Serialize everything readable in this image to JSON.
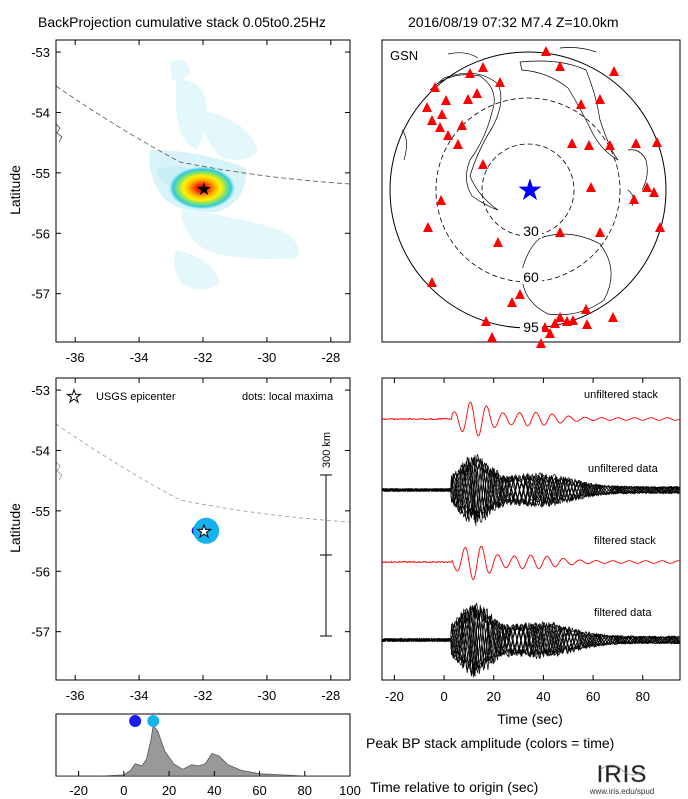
{
  "header": {
    "title": "BackProjection cumulative stack 0.05to0.25Hz",
    "event": "2016/08/19 07:32   M7.4  Z=10.0km"
  },
  "map_top": {
    "ylabel": "Latitude",
    "xticks": [
      "-36",
      "-34",
      "-32",
      "-30",
      "-28"
    ],
    "yticks": [
      "-53",
      "-54",
      "-55",
      "-56",
      "-57"
    ]
  },
  "globe": {
    "network": "GSN",
    "ring_labels": [
      "30",
      "60",
      "95"
    ]
  },
  "map_bottom": {
    "ylabel": "Latitude",
    "legend_epicenter": "USGS epicenter",
    "legend_dots": "dots: local maxima",
    "scale_label": "300 km",
    "xticks": [
      "-36",
      "-34",
      "-32",
      "-30",
      "-28"
    ],
    "yticks": [
      "-53",
      "-54",
      "-55",
      "-56",
      "-57"
    ]
  },
  "waveforms": {
    "labels": [
      "unfiltered stack",
      "unfiltered data",
      "filtered stack",
      "filtered data"
    ],
    "xlabel": "Time (sec)",
    "xticks": [
      "-20",
      "0",
      "20",
      "40",
      "60",
      "80"
    ]
  },
  "peak": {
    "title": "Peak BP stack amplitude (colors = time)",
    "xlabel": "Time relative to origin (sec)",
    "xticks": [
      "-20",
      "0",
      "20",
      "40",
      "60",
      "80",
      "100"
    ]
  },
  "logo": {
    "text": "IRIS",
    "url": "www.iris.edu/spud"
  },
  "colors": {
    "stack_red": "#ff0000",
    "station_red": "#ff0000",
    "epicenter_blue": "#0000ff",
    "maxima_dark": "#1b1bf0",
    "maxima_light": "#16b2ee",
    "envelope_gray": "#999999"
  },
  "chart_data": [
    {
      "type": "heatmap",
      "name": "cumulative stack map",
      "x_range": [
        -36.6,
        -27.4
      ],
      "y_range": [
        -57.8,
        -52.8
      ],
      "peak": {
        "lon": -31.9,
        "lat": -55.3
      },
      "epicenter": {
        "lon": -31.9,
        "lat": -55.3
      }
    },
    {
      "type": "scatter",
      "name": "local maxima",
      "x_range": [
        -36.6,
        -27.4
      ],
      "y_range": [
        -57.8,
        -52.8
      ],
      "points": [
        {
          "lon": -32.2,
          "lat": -55.33,
          "time": 5
        },
        {
          "lon": -31.9,
          "lat": -55.33,
          "time": 13
        }
      ],
      "scale_bar_km": 300
    },
    {
      "type": "line",
      "name": "waveforms",
      "x_range": [
        -25,
        95
      ],
      "traces": [
        "unfiltered stack",
        "unfiltered data",
        "filtered stack",
        "filtered data"
      ]
    },
    {
      "type": "area",
      "name": "peak BP stack amplitude",
      "x_range": [
        -30,
        100
      ],
      "x": [
        -30,
        -20,
        -10,
        0,
        3,
        5,
        8,
        10,
        12,
        13,
        15,
        18,
        22,
        26,
        30,
        33,
        36,
        39,
        42,
        46,
        52,
        60,
        70,
        80,
        90,
        100
      ],
      "y": [
        0,
        0,
        0,
        0.02,
        0.1,
        0.22,
        0.18,
        0.3,
        0.65,
        0.9,
        0.8,
        0.45,
        0.22,
        0.12,
        0.2,
        0.18,
        0.22,
        0.4,
        0.36,
        0.2,
        0.1,
        0.04,
        0.02,
        0,
        0,
        0
      ],
      "maxima": [
        {
          "time": 5,
          "color": "#1b1bf0"
        },
        {
          "time": 13,
          "color": "#16b2ee"
        }
      ]
    }
  ]
}
